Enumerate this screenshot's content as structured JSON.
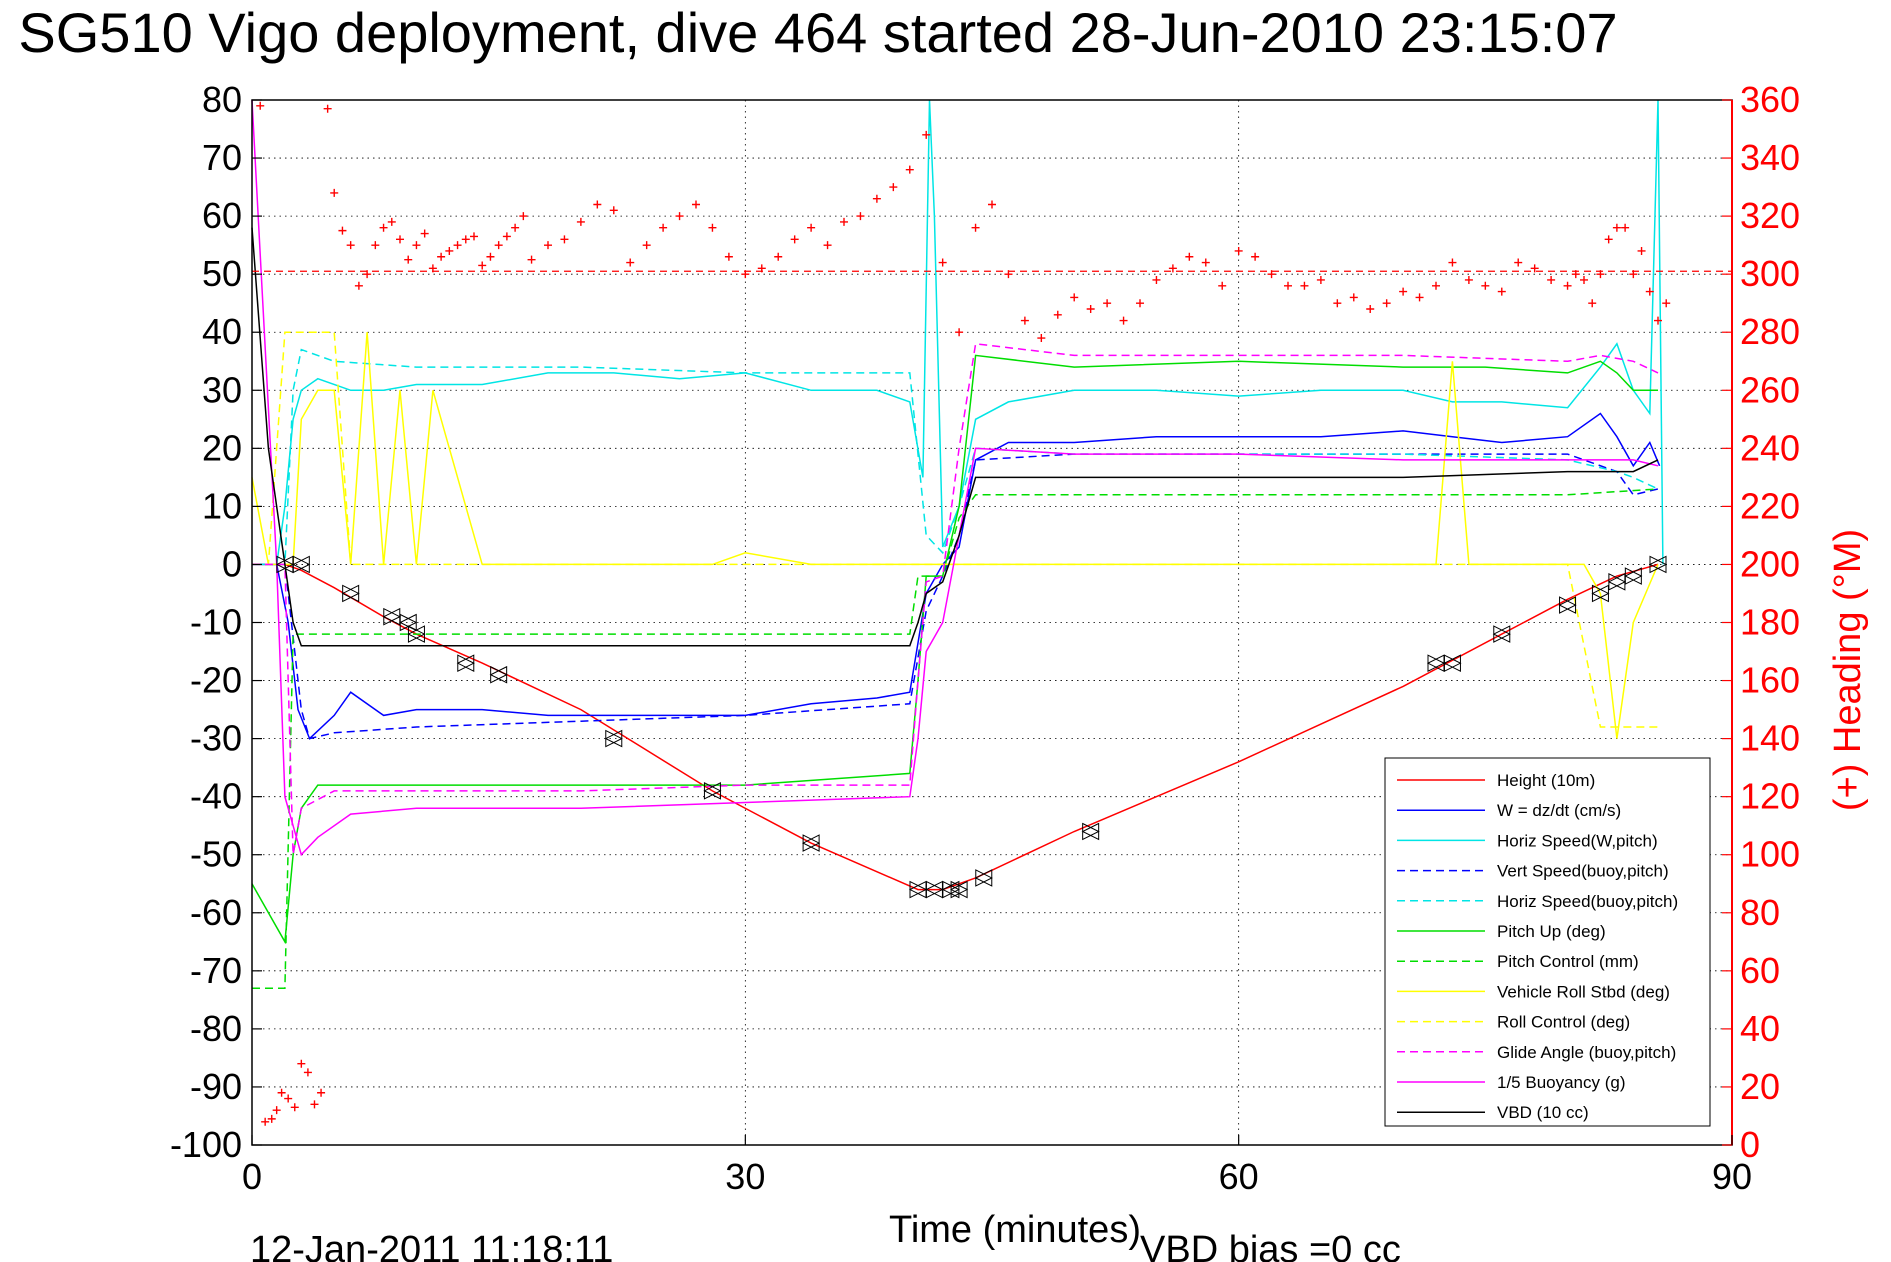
{
  "chart_data": {
    "type": "line",
    "title": "SG510 Vigo deployment, dive 464 started 28-Jun-2010 23:15:07",
    "xlabel": "Time (minutes)",
    "ylabel": "",
    "ylabel_right": "(+) Heading (°M)",
    "xlim": [
      0,
      90
    ],
    "ylim": [
      -100,
      80
    ],
    "ylim_right": [
      0,
      360
    ],
    "xticks": [
      0,
      30,
      60,
      90
    ],
    "yticks": [
      80,
      70,
      60,
      50,
      40,
      30,
      20,
      10,
      0,
      -10,
      -20,
      -30,
      -40,
      -50,
      -60,
      -70,
      -80,
      -90,
      -100
    ],
    "yticks_right": [
      360,
      340,
      320,
      300,
      280,
      260,
      240,
      220,
      200,
      180,
      160,
      140,
      120,
      100,
      80,
      60,
      40,
      20,
      0
    ],
    "grid": true,
    "legend_position": "bottom-right",
    "footer_date": "12-Jan-2011 11:18:11",
    "footer_note": "VBD bias =0 cc",
    "series": [
      {
        "name": "Height (10m)",
        "color": "#ff0000",
        "dash": "solid",
        "x": [
          0,
          2,
          3,
          5,
          8,
          10,
          14,
          20,
          28,
          34,
          40.5,
          42,
          44,
          50,
          60,
          70,
          76,
          80,
          83,
          85.5
        ],
        "y": [
          0,
          0,
          -1,
          -4,
          -9,
          -12,
          -17,
          -25,
          -39,
          -48,
          -56,
          -56,
          -54,
          -46,
          -34,
          -21,
          -12,
          -6,
          -2,
          0
        ]
      },
      {
        "name": "W = dz/dt (cm/s)",
        "color": "#0000ff",
        "dash": "solid",
        "x": [
          0,
          1.5,
          2.2,
          2.8,
          3.5,
          5,
          6,
          8,
          10,
          14,
          18,
          22,
          26,
          30,
          34,
          38,
          40,
          41,
          42,
          43,
          44,
          46,
          50,
          55,
          60,
          65,
          70,
          73,
          76,
          80,
          82,
          83,
          84,
          85,
          85.6
        ],
        "y": [
          0,
          0,
          -10,
          -25,
          -30,
          -26,
          -22,
          -26,
          -25,
          -25,
          -26,
          -26,
          -26,
          -26,
          -24,
          -23,
          -22,
          -5,
          0,
          3,
          18,
          21,
          21,
          22,
          22,
          22,
          23,
          22,
          21,
          22,
          26,
          22,
          17,
          21,
          17
        ]
      },
      {
        "name": "Horiz Speed(W,pitch)",
        "color": "#00e5e5",
        "dash": "solid",
        "x": [
          0,
          1.5,
          2,
          2.5,
          3,
          4,
          6,
          8,
          10,
          14,
          18,
          22,
          26,
          30,
          34,
          38,
          40,
          40.8,
          41.2,
          41.5,
          42,
          43,
          44,
          46,
          50,
          55,
          60,
          65,
          70,
          73,
          76,
          80,
          82,
          83,
          84,
          85,
          85.5,
          85.8
        ],
        "y": [
          0,
          0,
          10,
          25,
          30,
          32,
          30,
          30,
          31,
          31,
          33,
          33,
          32,
          33,
          30,
          30,
          28,
          15,
          80,
          60,
          3,
          10,
          25,
          28,
          30,
          30,
          29,
          30,
          30,
          28,
          28,
          27,
          34,
          38,
          30,
          26,
          80,
          0
        ]
      },
      {
        "name": "Vert Speed(buoy,pitch)",
        "color": "#0000ff",
        "dash": "dashed",
        "x": [
          0,
          2,
          3,
          3.5,
          5,
          10,
          20,
          30,
          35,
          40,
          41,
          42,
          43,
          44,
          50,
          60,
          70,
          80,
          83,
          84,
          85.5
        ],
        "y": [
          0,
          0,
          -25,
          -30,
          -29,
          -28,
          -27,
          -26,
          -25,
          -24,
          -8,
          -2,
          5,
          18,
          19,
          19,
          19,
          19,
          16,
          12,
          13
        ]
      },
      {
        "name": "Horiz Speed(buoy,pitch)",
        "color": "#00e5e5",
        "dash": "dashed",
        "x": [
          0,
          2,
          2.5,
          3,
          5,
          10,
          20,
          30,
          35,
          40,
          41,
          42,
          43,
          44,
          50,
          60,
          70,
          80,
          83,
          84,
          85.5
        ],
        "y": [
          0,
          0,
          30,
          37,
          35,
          34,
          34,
          33,
          33,
          33,
          5,
          2,
          10,
          20,
          19,
          19,
          19,
          18,
          16,
          15,
          13
        ]
      },
      {
        "name": "Pitch Up (deg)",
        "color": "#00dd00",
        "dash": "solid",
        "x": [
          0,
          2,
          2.5,
          3,
          4,
          6,
          10,
          20,
          30,
          35,
          40,
          40.5,
          41,
          42,
          43,
          44,
          50,
          60,
          70,
          75,
          80,
          82,
          83,
          84,
          85.5
        ],
        "y": [
          -55,
          -65,
          -50,
          -42,
          -38,
          -38,
          -38,
          -38,
          -38,
          -37,
          -36,
          -20,
          -2,
          -2,
          10,
          36,
          34,
          35,
          34,
          34,
          33,
          35,
          33,
          30,
          30
        ]
      },
      {
        "name": "Pitch Control (mm)",
        "color": "#00dd00",
        "dash": "dashed",
        "x": [
          0,
          2,
          2.5,
          3,
          5,
          10,
          20,
          30,
          40,
          40.5,
          41,
          42,
          43,
          44,
          50,
          60,
          70,
          80,
          85.5
        ],
        "y": [
          -73,
          -73,
          -12,
          -12,
          -12,
          -12,
          -12,
          -12,
          -12,
          -2,
          -2,
          -2,
          8,
          12,
          12,
          12,
          12,
          12,
          13
        ]
      },
      {
        "name": "Vehicle Roll Stbd (deg)",
        "color": "#ffff00",
        "dash": "solid",
        "x": [
          0,
          1,
          2,
          2.5,
          3,
          4,
          5,
          6,
          7,
          8,
          9,
          10,
          11,
          14,
          18,
          22,
          26,
          28,
          30,
          34,
          38,
          40,
          42,
          44,
          46,
          50,
          55,
          60,
          65,
          70,
          72,
          73,
          74,
          76,
          78,
          80,
          81,
          82,
          83,
          84,
          85.5
        ],
        "y": [
          15,
          0,
          0,
          0,
          25,
          30,
          30,
          0,
          40,
          0,
          30,
          0,
          30,
          0,
          0,
          0,
          0,
          0,
          2,
          0,
          0,
          0,
          0,
          0,
          0,
          0,
          0,
          0,
          0,
          0,
          0,
          35,
          0,
          0,
          0,
          0,
          0,
          -5,
          -30,
          -10,
          0
        ]
      },
      {
        "name": "Roll Control (deg)",
        "color": "#ffff00",
        "dash": "dashed",
        "x": [
          0,
          1,
          2,
          2.5,
          3,
          5,
          6,
          10,
          20,
          30,
          40,
          42,
          44,
          46,
          50,
          60,
          70,
          75,
          80,
          82,
          83,
          84,
          85.5
        ],
        "y": [
          0,
          0,
          40,
          40,
          40,
          40,
          0,
          0,
          0,
          0,
          0,
          0,
          0,
          0,
          0,
          0,
          0,
          0,
          0,
          -28,
          -28,
          -28,
          -28
        ]
      },
      {
        "name": "Glide Angle (buoy,pitch)",
        "color": "#ff00ff",
        "dash": "dashed",
        "x": [
          0,
          2,
          2.5,
          3,
          5,
          10,
          20,
          30,
          40,
          40.5,
          41,
          42,
          43,
          44,
          50,
          60,
          70,
          80,
          82,
          84,
          85.5
        ],
        "y": [
          0,
          0,
          -50,
          -42,
          -39,
          -39,
          -39,
          -38,
          -38,
          -20,
          -3,
          -2,
          20,
          38,
          36,
          36,
          36,
          35,
          36,
          35,
          33
        ]
      },
      {
        "name": "1/5 Buoyancy (g)",
        "color": "#ff00ff",
        "dash": "solid",
        "x": [
          0,
          1.5,
          2,
          2.5,
          3,
          4,
          6,
          10,
          20,
          30,
          40,
          40.5,
          41,
          42,
          43,
          44,
          50,
          60,
          70,
          80,
          84,
          85.5
        ],
        "y": [
          80,
          0,
          -40,
          -45,
          -50,
          -47,
          -43,
          -42,
          -42,
          -41,
          -40,
          -30,
          -15,
          -10,
          5,
          20,
          19,
          19,
          18,
          18,
          18,
          17
        ]
      },
      {
        "name": "VBD (10 cc)",
        "color": "#000000",
        "dash": "solid",
        "x": [
          0,
          1,
          2,
          2.5,
          3,
          10,
          20,
          30,
          40,
          40.5,
          41,
          42,
          43,
          44,
          50,
          60,
          70,
          80,
          84,
          85.5
        ],
        "y": [
          58,
          20,
          0,
          -10,
          -14,
          -14,
          -14,
          -14,
          -14,
          -10,
          -5,
          -3,
          5,
          15,
          15,
          15,
          15,
          16,
          16,
          18
        ]
      }
    ],
    "heading": {
      "name": "(+) Heading (°M)",
      "color": "#ff0000",
      "mean": 301,
      "x": [
        0.5,
        0.8,
        1.2,
        1.5,
        1.8,
        2.2,
        2.6,
        3.0,
        3.4,
        3.8,
        4.2,
        4.6,
        5.0,
        5.5,
        6.0,
        6.5,
        7.0,
        7.5,
        8.0,
        8.5,
        9.0,
        9.5,
        10.0,
        10.5,
        11.0,
        11.5,
        12.0,
        12.5,
        13.0,
        13.5,
        14.0,
        14.5,
        15.0,
        15.5,
        16.0,
        16.5,
        17.0,
        18.0,
        19.0,
        20.0,
        21.0,
        22.0,
        23.0,
        24.0,
        25.0,
        26.0,
        27.0,
        28.0,
        29.0,
        30.0,
        31.0,
        32.0,
        33.0,
        34.0,
        35.0,
        36.0,
        37.0,
        38.0,
        39.0,
        40.0,
        41.0,
        42.0,
        43.0,
        44.0,
        45.0,
        46.0,
        47.0,
        48.0,
        49.0,
        50.0,
        51.0,
        52.0,
        53.0,
        54.0,
        55.0,
        56.0,
        57.0,
        58.0,
        59.0,
        60.0,
        61.0,
        62.0,
        63.0,
        64.0,
        65.0,
        66.0,
        67.0,
        68.0,
        69.0,
        70.0,
        71.0,
        72.0,
        73.0,
        74.0,
        75.0,
        76.0,
        77.0,
        78.0,
        79.0,
        80.0,
        80.5,
        81.0,
        81.5,
        82.0,
        82.5,
        83.0,
        83.5,
        84.0,
        84.5,
        85.0,
        85.5,
        86.0
      ],
      "y": [
        358,
        8,
        9,
        12,
        18,
        16,
        13,
        28,
        25,
        14,
        18,
        357,
        328,
        315,
        310,
        296,
        300,
        310,
        316,
        318,
        312,
        305,
        310,
        314,
        302,
        306,
        308,
        310,
        312,
        313,
        303,
        306,
        310,
        313,
        316,
        320,
        305,
        310,
        312,
        318,
        324,
        322,
        304,
        310,
        316,
        320,
        324,
        316,
        306,
        300,
        302,
        306,
        312,
        316,
        310,
        318,
        320,
        326,
        330,
        336,
        348,
        304,
        280,
        316,
        324,
        300,
        284,
        278,
        286,
        292,
        288,
        290,
        284,
        290,
        298,
        302,
        306,
        304,
        296,
        308,
        306,
        300,
        296,
        296,
        298,
        290,
        292,
        288,
        290,
        294,
        292,
        296,
        304,
        298,
        296,
        294,
        304,
        302,
        298,
        296,
        300,
        298,
        290,
        300,
        312,
        316,
        316,
        300,
        308,
        294,
        284,
        290
      ]
    },
    "markers": {
      "x": [
        2,
        3,
        6,
        8.5,
        9.5,
        10,
        13,
        15,
        22,
        28,
        34,
        40.5,
        41.5,
        42.5,
        43,
        44.5,
        51,
        72,
        73,
        76,
        80,
        82,
        83,
        84,
        85.5
      ],
      "y": [
        0,
        0,
        -5,
        -9,
        -10,
        -12,
        -17,
        -19,
        -30,
        -39,
        -48,
        -56,
        -56,
        -56,
        -56,
        -54,
        -46,
        -17,
        -17,
        -12,
        -7,
        -5,
        -3,
        -2,
        0
      ]
    }
  }
}
